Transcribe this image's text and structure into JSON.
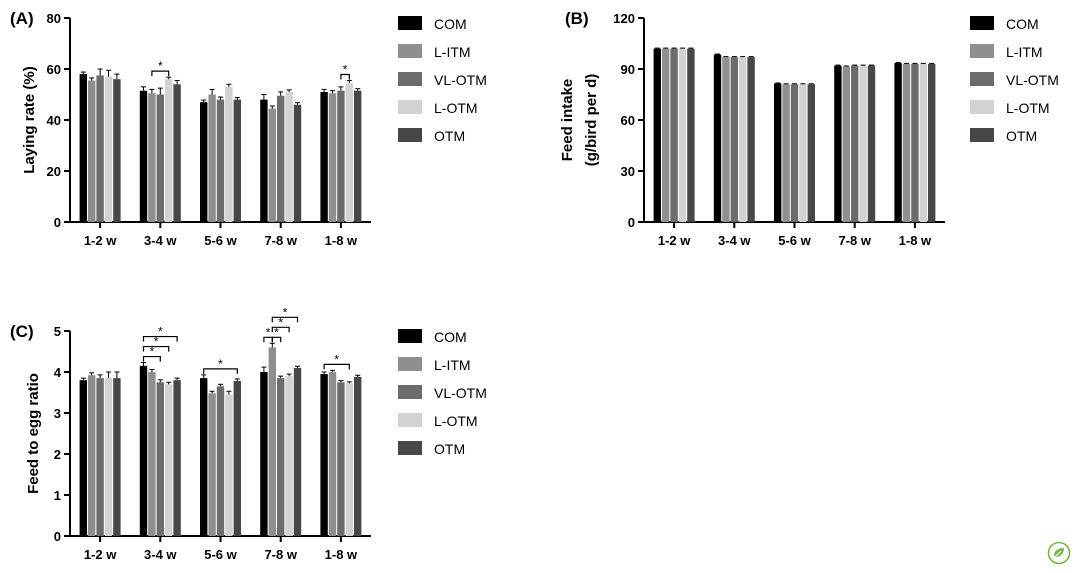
{
  "colors": {
    "COM": "#000000",
    "L-ITM": "#8f8f8f",
    "VL-OTM": "#6c6c6c",
    "L-OTM": "#d2d2d2",
    "OTM": "#474747",
    "axis": "#000000",
    "logo": "#7cb342"
  },
  "legend_entries": [
    "COM",
    "L-ITM",
    "VL-OTM",
    "L-OTM",
    "OTM"
  ],
  "chart_data": [
    {
      "panel": "(A)",
      "type": "bar",
      "ylabel": "Laying rate (%)",
      "xlabel": "",
      "ylim": [
        0,
        80
      ],
      "yticks": [
        0,
        20,
        40,
        60,
        80
      ],
      "grid": false,
      "legend_position": "right",
      "categories": [
        "1-2 w",
        "3-4 w",
        "5-6 w",
        "7-8 w",
        "1-8 w"
      ],
      "series": [
        {
          "name": "COM",
          "values": [
            58.0,
            51.5,
            47.0,
            48.0,
            51.0
          ],
          "errors": [
            0.8,
            1.5,
            0.8,
            2.0,
            1.0
          ]
        },
        {
          "name": "L-ITM",
          "values": [
            55.5,
            50.5,
            50.0,
            44.5,
            50.5
          ],
          "errors": [
            1.0,
            1.5,
            2.0,
            1.0,
            1.0
          ]
        },
        {
          "name": "VL-OTM",
          "values": [
            57.5,
            50.0,
            48.0,
            49.5,
            51.5
          ],
          "errors": [
            2.5,
            2.5,
            1.0,
            1.5,
            1.5
          ]
        },
        {
          "name": "L-OTM",
          "values": [
            57.0,
            56.0,
            53.0,
            51.0,
            54.5
          ],
          "errors": [
            2.5,
            0.8,
            1.0,
            0.8,
            1.0
          ]
        },
        {
          "name": "OTM",
          "values": [
            56.0,
            54.0,
            48.0,
            46.0,
            51.5
          ],
          "errors": [
            2.0,
            1.5,
            0.8,
            0.8,
            0.8
          ]
        }
      ],
      "significance": [
        {
          "category": "3-4 w",
          "from": "L-ITM",
          "to": "L-OTM",
          "level": 1,
          "label": "*"
        },
        {
          "category": "1-8 w",
          "from": "VL-OTM",
          "to": "L-OTM",
          "level": 1,
          "label": "*"
        }
      ]
    },
    {
      "panel": "(B)",
      "type": "bar",
      "ylabel": "Feed intake",
      "ylabel2": "(g/bird per d)",
      "xlabel": "",
      "ylim": [
        0,
        120
      ],
      "yticks": [
        0,
        30,
        60,
        90,
        120
      ],
      "grid": false,
      "legend_position": "right",
      "categories": [
        "1-2 w",
        "3-4 w",
        "5-6 w",
        "7-8 w",
        "1-8 w"
      ],
      "series": [
        {
          "name": "COM",
          "values": [
            102.0,
            98.5,
            81.5,
            92.0,
            93.5
          ],
          "errors": [
            0.3,
            0.3,
            0.3,
            0.3,
            0.3
          ]
        },
        {
          "name": "L-ITM",
          "values": [
            102.0,
            97.0,
            81.0,
            91.5,
            93.0
          ],
          "errors": [
            0.3,
            0.3,
            0.3,
            0.3,
            0.3
          ]
        },
        {
          "name": "VL-OTM",
          "values": [
            102.0,
            97.0,
            81.0,
            92.0,
            93.0
          ],
          "errors": [
            0.3,
            0.3,
            0.3,
            0.3,
            0.3
          ]
        },
        {
          "name": "L-OTM",
          "values": [
            102.0,
            97.0,
            81.0,
            92.0,
            93.0
          ],
          "errors": [
            0.3,
            0.3,
            0.3,
            0.3,
            0.3
          ]
        },
        {
          "name": "OTM",
          "values": [
            102.0,
            97.0,
            81.0,
            92.0,
            93.0
          ],
          "errors": [
            0.3,
            0.3,
            0.3,
            0.3,
            0.3
          ]
        }
      ],
      "significance": []
    },
    {
      "panel": "(C)",
      "type": "bar",
      "ylabel": "Feed to egg ratio",
      "xlabel": "",
      "ylim": [
        0,
        5
      ],
      "yticks": [
        0,
        1,
        2,
        3,
        4,
        5
      ],
      "grid": false,
      "legend_position": "right",
      "categories": [
        "1-2 w",
        "3-4 w",
        "5-6 w",
        "7-8 w",
        "1-8 w"
      ],
      "series": [
        {
          "name": "COM",
          "values": [
            3.8,
            4.15,
            3.85,
            4.0,
            3.95
          ],
          "errors": [
            0.05,
            0.08,
            0.08,
            0.12,
            0.05
          ]
        },
        {
          "name": "L-ITM",
          "values": [
            3.92,
            4.0,
            3.48,
            4.6,
            4.0
          ],
          "errors": [
            0.06,
            0.06,
            0.05,
            0.1,
            0.04
          ]
        },
        {
          "name": "VL-OTM",
          "values": [
            3.85,
            3.75,
            3.65,
            3.85,
            3.75
          ],
          "errors": [
            0.08,
            0.06,
            0.05,
            0.05,
            0.04
          ]
        },
        {
          "name": "L-OTM",
          "values": [
            3.85,
            3.7,
            3.45,
            3.9,
            3.72
          ],
          "errors": [
            0.15,
            0.05,
            0.08,
            0.05,
            0.04
          ]
        },
        {
          "name": "OTM",
          "values": [
            3.85,
            3.8,
            3.78,
            4.1,
            3.88
          ],
          "errors": [
            0.15,
            0.05,
            0.05,
            0.04,
            0.04
          ]
        }
      ],
      "significance": [
        {
          "category": "3-4 w",
          "from": "COM",
          "to": "VL-OTM",
          "level": 1,
          "label": "*"
        },
        {
          "category": "3-4 w",
          "from": "COM",
          "to": "L-OTM",
          "level": 2,
          "label": "*"
        },
        {
          "category": "3-4 w",
          "from": "COM",
          "to": "OTM",
          "level": 3,
          "label": "*"
        },
        {
          "category": "5-6 w",
          "from": "COM",
          "to": "OTM",
          "level": 1,
          "label": "*"
        },
        {
          "category": "7-8 w",
          "from": "COM",
          "to": "L-ITM",
          "level": 1,
          "label": "*"
        },
        {
          "category": "7-8 w",
          "from": "L-ITM",
          "to": "VL-OTM",
          "level": 1,
          "label": "*"
        },
        {
          "category": "7-8 w",
          "from": "L-ITM",
          "to": "L-OTM",
          "level": 2,
          "label": "*"
        },
        {
          "category": "7-8 w",
          "from": "L-ITM",
          "to": "OTM",
          "level": 3,
          "label": "*"
        },
        {
          "category": "1-8 w",
          "from": "COM",
          "to": "L-OTM",
          "level": 1,
          "label": "*"
        }
      ]
    }
  ]
}
